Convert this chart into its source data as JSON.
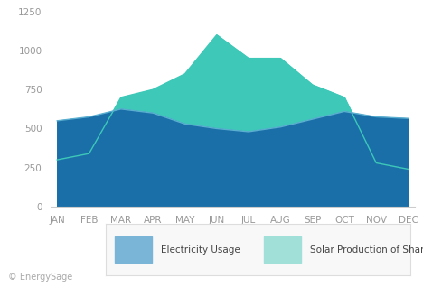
{
  "months": [
    "JAN",
    "FEB",
    "MAR",
    "APR",
    "MAY",
    "JUN",
    "JUL",
    "AUG",
    "SEP",
    "OCT",
    "NOV",
    "DEC"
  ],
  "electricity_usage": [
    550,
    575,
    625,
    600,
    530,
    500,
    480,
    510,
    560,
    610,
    575,
    565
  ],
  "solar_production": [
    300,
    340,
    700,
    750,
    850,
    1100,
    950,
    950,
    780,
    700,
    280,
    240
  ],
  "electricity_color": "#1a6fa8",
  "electricity_legend_color": "#7ab5d8",
  "solar_color": "#3dc8b8",
  "solar_legend_color": "#a0e0d8",
  "ylim": [
    0,
    1250
  ],
  "yticks": [
    0,
    250,
    500,
    750,
    1000,
    1250
  ],
  "legend_electricity": "Electricity Usage",
  "legend_solar": "Solar Production of Share (kWh)",
  "copyright": "© EnergySage",
  "background_color": "#ffffff",
  "legend_box_color": "#f8f8f8",
  "tick_color": "#999999",
  "spine_color": "#cccccc"
}
